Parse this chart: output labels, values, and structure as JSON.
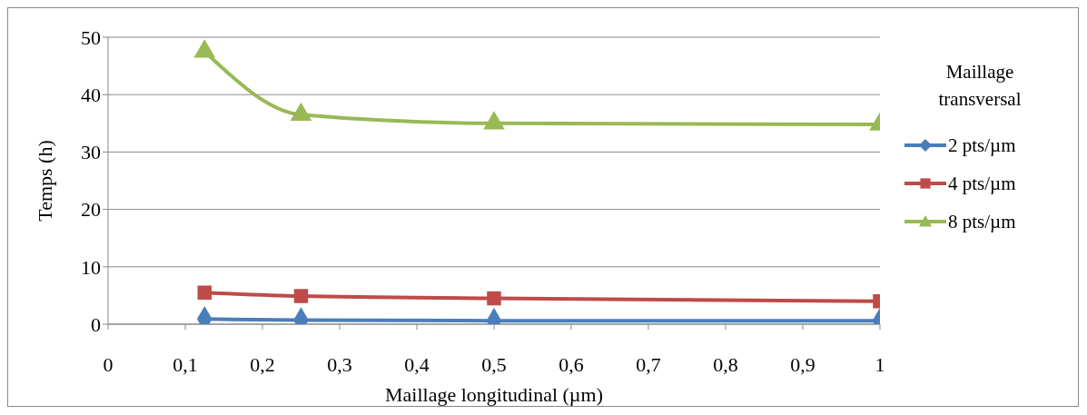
{
  "chart_data": {
    "type": "line",
    "xlabel": "Maillage longitudinal (µm)",
    "ylabel": "Temps (h)",
    "legend_title": "Maillage transversal",
    "x": [
      0.125,
      0.25,
      0.5,
      1
    ],
    "series": [
      {
        "name": "2 pts/µm",
        "color": "#4a7ebb",
        "marker": "diamond",
        "values": [
          0.9,
          0.7,
          0.6,
          0.6
        ]
      },
      {
        "name": "4 pts/µm",
        "color": "#be4b48",
        "marker": "square",
        "values": [
          5.5,
          4.9,
          4.5,
          4.0
        ]
      },
      {
        "name": "8 pts/µm",
        "color": "#98b954",
        "marker": "triangle",
        "values": [
          47.5,
          36.5,
          35,
          34.8
        ]
      }
    ],
    "xlim": [
      0,
      1
    ],
    "xticks": [
      {
        "value": 0,
        "label": "0"
      },
      {
        "value": 0.1,
        "label": "0,1"
      },
      {
        "value": 0.2,
        "label": "0,2"
      },
      {
        "value": 0.3,
        "label": "0,3"
      },
      {
        "value": 0.4,
        "label": "0,4"
      },
      {
        "value": 0.5,
        "label": "0,5"
      },
      {
        "value": 0.6,
        "label": "0,6"
      },
      {
        "value": 0.7,
        "label": "0,7"
      },
      {
        "value": 0.8,
        "label": "0,8"
      },
      {
        "value": 0.9,
        "label": "0,9"
      },
      {
        "value": 1,
        "label": "1"
      }
    ],
    "ylim": [
      0,
      50
    ],
    "yticks": [
      0,
      10,
      20,
      30,
      40,
      50
    ],
    "grid": "y",
    "legend": "right",
    "line_style": "solid"
  }
}
